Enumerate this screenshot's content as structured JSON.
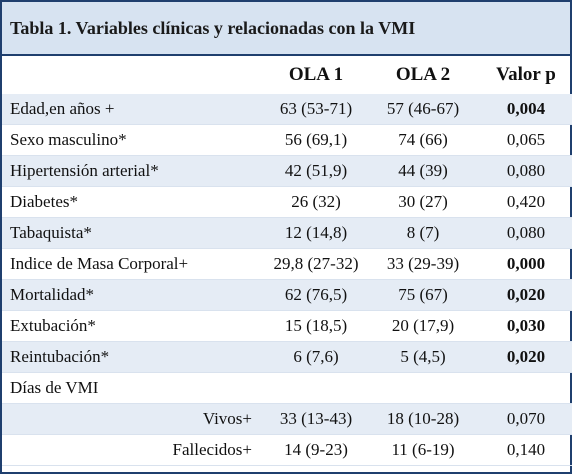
{
  "title": "Tabla 1. Variables clínicas y relacionadas con la VMI",
  "columns": {
    "ola1": "OLA 1",
    "ola2": "OLA 2",
    "p": "Valor p"
  },
  "rows": [
    {
      "label": "Edad,en años +",
      "ola1": "63 (53-71)",
      "ola2": "57 (46-67)",
      "p": "0,004",
      "p_bold": true
    },
    {
      "label": "Sexo masculino*",
      "ola1": "56 (69,1)",
      "ola2": "74 (66)",
      "p": "0,065",
      "p_bold": false
    },
    {
      "label": "Hipertensión arterial*",
      "ola1": "42 (51,9)",
      "ola2": "44 (39)",
      "p": "0,080",
      "p_bold": false
    },
    {
      "label": "Diabetes*",
      "ola1": "26 (32)",
      "ola2": "30 (27)",
      "p": "0,420",
      "p_bold": false
    },
    {
      "label": "Tabaquista*",
      "ola1": "12 (14,8)",
      "ola2": "8 (7)",
      "p": "0,080",
      "p_bold": false
    },
    {
      "label": "Indice de Masa Corporal+",
      "ola1": "29,8 (27-32)",
      "ola2": "33 (29-39)",
      "p": "0,000",
      "p_bold": true
    },
    {
      "label": "Mortalidad*",
      "ola1": "62 (76,5)",
      "ola2": "75 (67)",
      "p": "0,020",
      "p_bold": true
    },
    {
      "label": "Extubación*",
      "ola1": "15 (18,5)",
      "ola2": "20 (17,9)",
      "p": "0,030",
      "p_bold": true
    },
    {
      "label": "Reintubación*",
      "ola1": "6 (7,6)",
      "ola2": "5 (4,5)",
      "p": "0,020",
      "p_bold": true
    },
    {
      "label": "Días de VMI",
      "ola1": "",
      "ola2": "",
      "p": "",
      "p_bold": false
    },
    {
      "label": "Vivos+",
      "ola1": "33 (13-43)",
      "ola2": "18 (10-28)",
      "p": "0,070",
      "p_bold": false,
      "sub": true
    },
    {
      "label": "Fallecidos+",
      "ola1": "14 (9-23)",
      "ola2": "11 (6-19)",
      "p": "0,140",
      "p_bold": false,
      "sub": true
    }
  ],
  "colors": {
    "border": "#1f3f6e",
    "title_bg": "#d7e3f1",
    "stripe": "#e5ecf5"
  }
}
